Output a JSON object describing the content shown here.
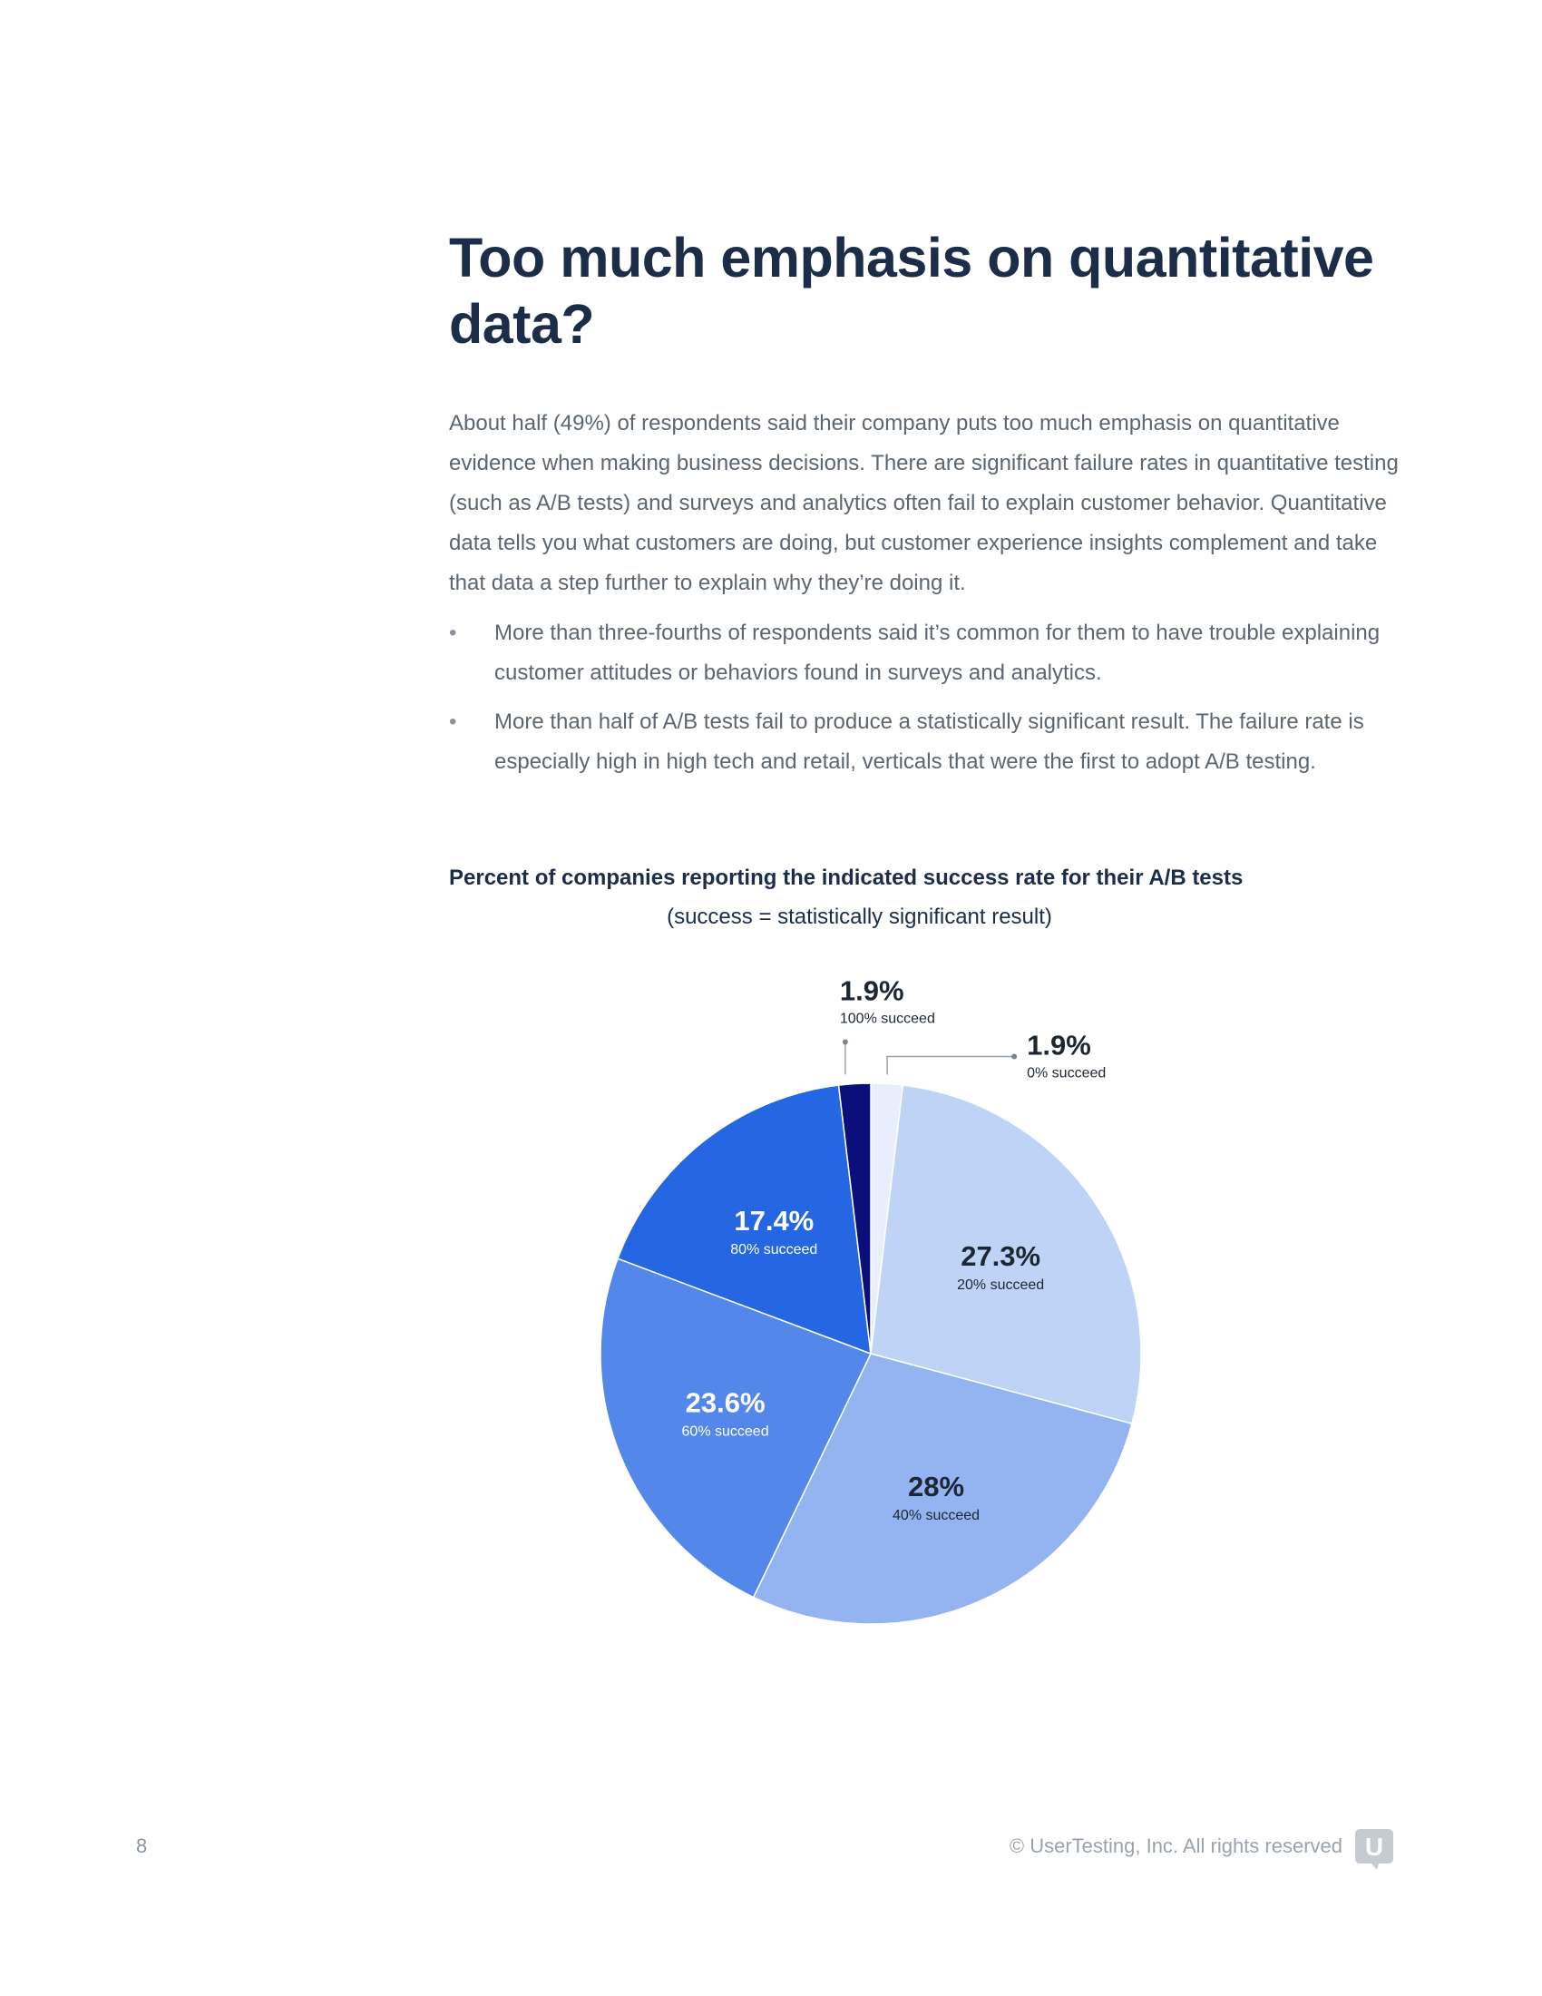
{
  "page": {
    "heading": "Too much emphasis on quantitative data?",
    "intro": "About half (49%) of respondents said their company puts too much emphasis on quantitative evidence when making business decisions. There are significant failure rates in quantitative testing (such as A/B tests) and surveys and analytics often fail to explain customer behavior. Quantitative data tells you what customers are doing, but customer experience insights complement and take that data a step further to explain why they’re doing it.",
    "bullet_marker": "•",
    "bullets": [
      "More than three-fourths of respondents said it’s common for them to have trouble explaining customer attitudes or behaviors found in surveys and analytics.",
      "More than half of A/B tests fail to produce a statistically significant result. The failure rate is especially high in high tech and retail, verticals that were the first to adopt A/B testing."
    ]
  },
  "chart_data": {
    "type": "pie",
    "title": "Percent of companies reporting the indicated success rate for their A/B tests",
    "subtitle": "(success = statistically significant result)",
    "slices": [
      {
        "value": 1.9,
        "label": "1.9%",
        "category": "0% succeed",
        "color": "#e8eefb",
        "text_color": "#1d2733",
        "callout": true
      },
      {
        "value": 27.3,
        "label": "27.3%",
        "category": "20% succeed",
        "color": "#bfd3f7",
        "text_color": "#1d2733",
        "callout": false
      },
      {
        "value": 28,
        "label": "28%",
        "category": "40% succeed",
        "color": "#93b3f1",
        "text_color": "#1d2733",
        "callout": false
      },
      {
        "value": 23.6,
        "label": "23.6%",
        "category": "60% succeed",
        "color": "#5387ea",
        "text_color": "#ffffff",
        "callout": false
      },
      {
        "value": 17.4,
        "label": "17.4%",
        "category": "80% succeed",
        "color": "#2566e3",
        "text_color": "#ffffff",
        "callout": false
      },
      {
        "value": 1.9,
        "label": "1.9%",
        "category": "100% succeed",
        "color": "#0a0f7a",
        "text_color": "#1d2733",
        "callout": true
      }
    ]
  },
  "footer": {
    "page_number": "8",
    "copyright": "© UserTesting, Inc. All rights reserved",
    "logo_letter": "U",
    "logo_color": "#c6cbd1"
  }
}
